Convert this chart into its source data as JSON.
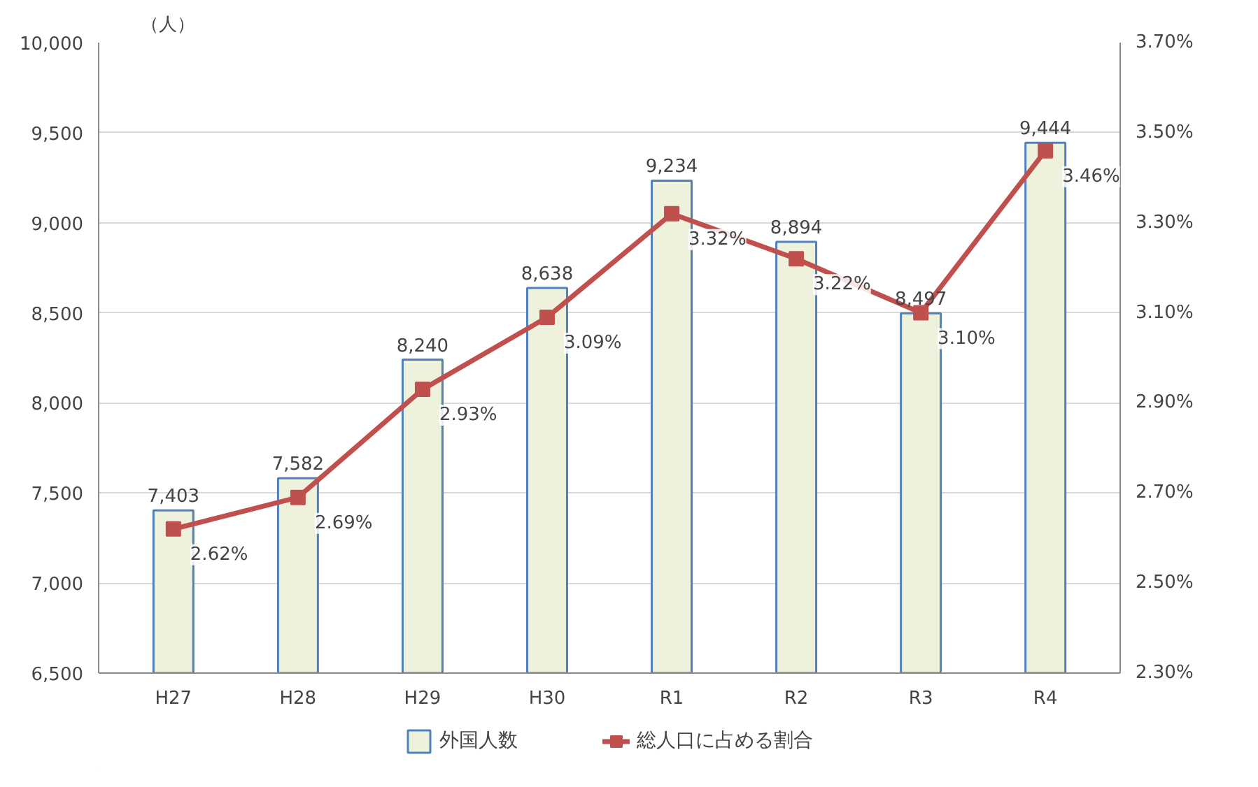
{
  "chart_data": {
    "type": "bar",
    "ylabel": "（人）",
    "categories": [
      "H27",
      "H28",
      "H29",
      "H30",
      "R1",
      "R2",
      "R3",
      "R4"
    ],
    "series": [
      {
        "name": "外国人数",
        "color": "#eef2dc",
        "values": [
          7403,
          7582,
          8240,
          8638,
          9234,
          8894,
          8497,
          9444
        ],
        "value_labels": [
          "7,403",
          "7,582",
          "8,240",
          "8,638",
          "9,234",
          "8,894",
          "8,497",
          "9,444"
        ]
      },
      {
        "name": "総人口に占める割合",
        "type": "line",
        "axis": "y2",
        "color": "#c0504d",
        "values": [
          2.62,
          2.69,
          2.93,
          3.09,
          3.32,
          3.22,
          3.1,
          3.46
        ],
        "value_labels": [
          "2.62%",
          "2.69%",
          "2.93%",
          "3.09%",
          "3.32%",
          "3.22%",
          "3.10%",
          "3.46%"
        ]
      }
    ],
    "ylim": [
      6500,
      10000
    ],
    "yticks": [
      {
        "value": 6500,
        "label": "6,500"
      },
      {
        "value": 7000,
        "label": "7,000"
      },
      {
        "value": 7500,
        "label": "7,500"
      },
      {
        "value": 8000,
        "label": "8,000"
      },
      {
        "value": 8500,
        "label": "8,500"
      },
      {
        "value": 9000,
        "label": "9,000"
      },
      {
        "value": 9500,
        "label": "9,500"
      },
      {
        "value": 10000,
        "label": "10,000"
      }
    ],
    "y2lim": [
      2.3,
      3.7
    ],
    "y2ticks": [
      {
        "value": 2.3,
        "label": "2.30%"
      },
      {
        "value": 2.5,
        "label": "2.50%"
      },
      {
        "value": 2.7,
        "label": "2.70%"
      },
      {
        "value": 2.9,
        "label": "2.90%"
      },
      {
        "value": 3.1,
        "label": "3.10%"
      },
      {
        "value": 3.3,
        "label": "3.30%"
      },
      {
        "value": 3.5,
        "label": "3.50%"
      },
      {
        "value": 3.7,
        "label": "3.70%"
      }
    ],
    "grid": "y",
    "legend": "bottom",
    "marker": "square",
    "line_style": "solid"
  }
}
